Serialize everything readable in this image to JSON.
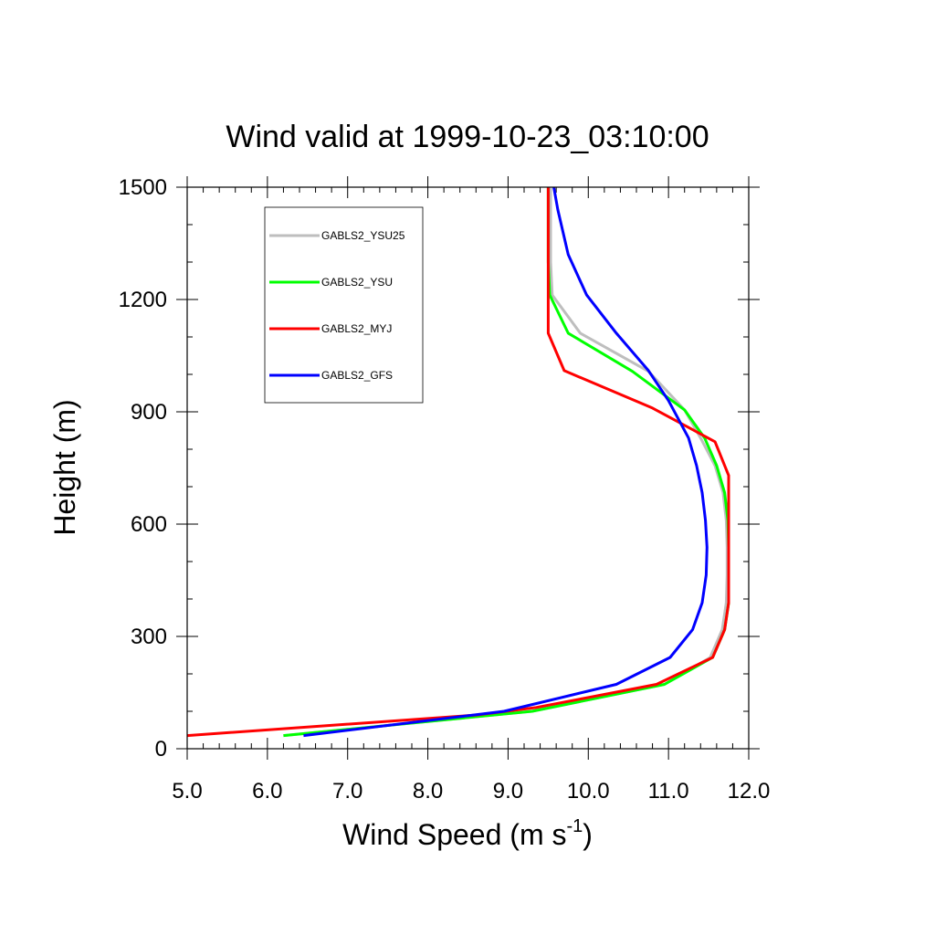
{
  "chart_data": {
    "type": "line",
    "title": "Wind valid at 1999-10-23_03:10:00",
    "xlabel_main": "Wind Speed (m s",
    "xlabel_sup": "-1",
    "xlabel_close": ")",
    "ylabel": "Height (m)",
    "xlim": [
      5.0,
      12.0
    ],
    "ylim": [
      0,
      1500
    ],
    "xticks": [
      5.0,
      6.0,
      7.0,
      8.0,
      9.0,
      10.0,
      11.0,
      12.0
    ],
    "xtick_labels": [
      "5.0",
      "6.0",
      "7.0",
      "8.0",
      "9.0",
      "10.0",
      "11.0",
      "12.0"
    ],
    "yticks": [
      0,
      300,
      600,
      900,
      1200,
      1500
    ],
    "ytick_labels": [
      "0",
      "300",
      "600",
      "900",
      "1200",
      "1500"
    ],
    "legend_position": "top-left",
    "series": [
      {
        "name": "GABLS2_YSU25",
        "color": "#bebebe",
        "points": [
          [
            6.2,
            35
          ],
          [
            9.3,
            100
          ],
          [
            10.95,
            172
          ],
          [
            11.52,
            244
          ],
          [
            11.67,
            318
          ],
          [
            11.72,
            390
          ],
          [
            11.73,
            464
          ],
          [
            11.73,
            538
          ],
          [
            11.72,
            610
          ],
          [
            11.68,
            684
          ],
          [
            11.58,
            756
          ],
          [
            11.4,
            830
          ],
          [
            11.2,
            905
          ],
          [
            10.75,
            1008
          ],
          [
            9.9,
            1110
          ],
          [
            9.55,
            1212
          ],
          [
            9.53,
            1300
          ],
          [
            9.53,
            1500
          ]
        ]
      },
      {
        "name": "GABLS2_YSU",
        "color": "#00ff00",
        "points": [
          [
            6.2,
            35
          ],
          [
            9.3,
            100
          ],
          [
            10.95,
            172
          ],
          [
            11.55,
            244
          ],
          [
            11.7,
            318
          ],
          [
            11.75,
            390
          ],
          [
            11.75,
            464
          ],
          [
            11.75,
            538
          ],
          [
            11.74,
            610
          ],
          [
            11.7,
            684
          ],
          [
            11.6,
            756
          ],
          [
            11.45,
            830
          ],
          [
            11.2,
            905
          ],
          [
            10.55,
            1008
          ],
          [
            9.75,
            1110
          ],
          [
            9.52,
            1212
          ],
          [
            9.5,
            1300
          ],
          [
            9.5,
            1500
          ]
        ]
      },
      {
        "name": "GABLS2_MYJ",
        "color": "#ff0000",
        "points": [
          [
            5.0,
            35
          ],
          [
            8.6,
            90
          ],
          [
            9.35,
            110
          ],
          [
            10.85,
            172
          ],
          [
            11.55,
            244
          ],
          [
            11.7,
            318
          ],
          [
            11.75,
            390
          ],
          [
            11.75,
            464
          ],
          [
            11.75,
            538
          ],
          [
            11.75,
            610
          ],
          [
            11.75,
            684
          ],
          [
            11.75,
            730
          ],
          [
            11.58,
            820
          ],
          [
            10.8,
            910
          ],
          [
            9.7,
            1010
          ],
          [
            9.5,
            1110
          ],
          [
            9.5,
            1200
          ],
          [
            9.5,
            1500
          ]
        ]
      },
      {
        "name": "GABLS2_GFS",
        "color": "#0000ff",
        "points": [
          [
            6.45,
            35
          ],
          [
            8.95,
            100
          ],
          [
            10.35,
            172
          ],
          [
            11.02,
            244
          ],
          [
            11.3,
            318
          ],
          [
            11.42,
            390
          ],
          [
            11.47,
            464
          ],
          [
            11.48,
            538
          ],
          [
            11.46,
            610
          ],
          [
            11.42,
            684
          ],
          [
            11.35,
            756
          ],
          [
            11.25,
            830
          ],
          [
            11.0,
            930
          ],
          [
            10.75,
            1010
          ],
          [
            10.35,
            1110
          ],
          [
            9.98,
            1212
          ],
          [
            9.75,
            1320
          ],
          [
            9.62,
            1440
          ],
          [
            9.57,
            1500
          ]
        ]
      }
    ]
  }
}
